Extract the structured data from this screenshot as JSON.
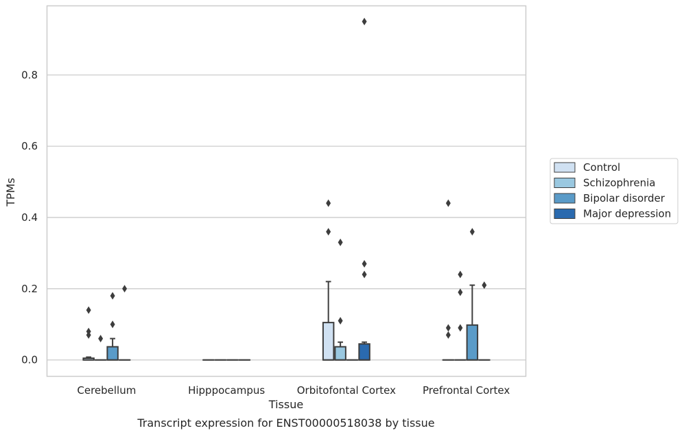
{
  "chart_data": {
    "type": "box",
    "xlabel": "Tissue",
    "ylabel": "TPMs",
    "caption": "Transcript expression for ENST00000518038 by tissue",
    "ylim": [
      -0.045,
      0.995
    ],
    "yticks": [
      0.0,
      0.2,
      0.4,
      0.6,
      0.8
    ],
    "ytick_labels": [
      "0.0",
      "0.2",
      "0.4",
      "0.6",
      "0.8"
    ],
    "grid": "horizontal",
    "legend_position": "right",
    "categories": [
      "Cerebellum",
      "Hipppocampus",
      "Orbitofontal Cortex",
      "Prefrontal Cortex"
    ],
    "series": [
      {
        "name": "Control",
        "color": "#d0e1f2",
        "boxes": [
          {
            "q1": 0.0,
            "median": 0.0,
            "q3": 0.005,
            "whisker_low": 0.0,
            "whisker_high": 0.008,
            "outliers": [
              0.14,
              0.08,
              0.07
            ]
          },
          {
            "q1": 0.0,
            "median": 0.0,
            "q3": 0.0,
            "whisker_low": 0.0,
            "whisker_high": 0.0,
            "outliers": []
          },
          {
            "q1": 0.0,
            "median": 0.0,
            "q3": 0.105,
            "whisker_low": 0.0,
            "whisker_high": 0.22,
            "outliers": [
              0.44,
              0.36
            ]
          },
          {
            "q1": 0.0,
            "median": 0.0,
            "q3": 0.0,
            "whisker_low": 0.0,
            "whisker_high": 0.0,
            "outliers": [
              0.44,
              0.09,
              0.07
            ]
          }
        ]
      },
      {
        "name": "Schizophrenia",
        "color": "#9ac8e0",
        "boxes": [
          {
            "q1": 0.0,
            "median": 0.0,
            "q3": 0.0,
            "whisker_low": 0.0,
            "whisker_high": 0.0,
            "outliers": [
              0.06
            ]
          },
          {
            "q1": 0.0,
            "median": 0.0,
            "q3": 0.0,
            "whisker_low": 0.0,
            "whisker_high": 0.0,
            "outliers": []
          },
          {
            "q1": 0.0,
            "median": 0.0,
            "q3": 0.037,
            "whisker_low": 0.0,
            "whisker_high": 0.05,
            "outliers": [
              0.33,
              0.11
            ]
          },
          {
            "q1": 0.0,
            "median": 0.0,
            "q3": 0.0,
            "whisker_low": 0.0,
            "whisker_high": 0.0,
            "outliers": [
              0.24,
              0.19,
              0.09
            ]
          }
        ]
      },
      {
        "name": "Bipolar disorder",
        "color": "#5a9bc8",
        "boxes": [
          {
            "q1": 0.0,
            "median": 0.0,
            "q3": 0.037,
            "whisker_low": 0.0,
            "whisker_high": 0.06,
            "outliers": [
              0.18,
              0.1
            ]
          },
          {
            "q1": 0.0,
            "median": 0.0,
            "q3": 0.0,
            "whisker_low": 0.0,
            "whisker_high": 0.0,
            "outliers": []
          },
          {
            "q1": 0.0,
            "median": 0.0,
            "q3": 0.0,
            "whisker_low": 0.0,
            "whisker_high": 0.0,
            "outliers": []
          },
          {
            "q1": 0.0,
            "median": 0.0,
            "q3": 0.098,
            "whisker_low": 0.0,
            "whisker_high": 0.21,
            "outliers": [
              0.36
            ]
          }
        ]
      },
      {
        "name": "Major depression",
        "color": "#2a6aaf",
        "boxes": [
          {
            "q1": 0.0,
            "median": 0.0,
            "q3": 0.0,
            "whisker_low": 0.0,
            "whisker_high": 0.0,
            "outliers": [
              0.2
            ]
          },
          {
            "q1": 0.0,
            "median": 0.0,
            "q3": 0.0,
            "whisker_low": 0.0,
            "whisker_high": 0.0,
            "outliers": []
          },
          {
            "q1": 0.0,
            "median": 0.0,
            "q3": 0.045,
            "whisker_low": 0.0,
            "whisker_high": 0.05,
            "outliers": [
              0.95,
              0.27,
              0.24
            ]
          },
          {
            "q1": 0.0,
            "median": 0.0,
            "q3": 0.0,
            "whisker_low": 0.0,
            "whisker_high": 0.0,
            "outliers": [
              0.21
            ]
          }
        ]
      }
    ]
  },
  "colors": {
    "grid": "#cccccc",
    "frame": "#cccccc",
    "box_edge": "#3d3d3d",
    "text": "#262626",
    "background": "#ffffff"
  }
}
